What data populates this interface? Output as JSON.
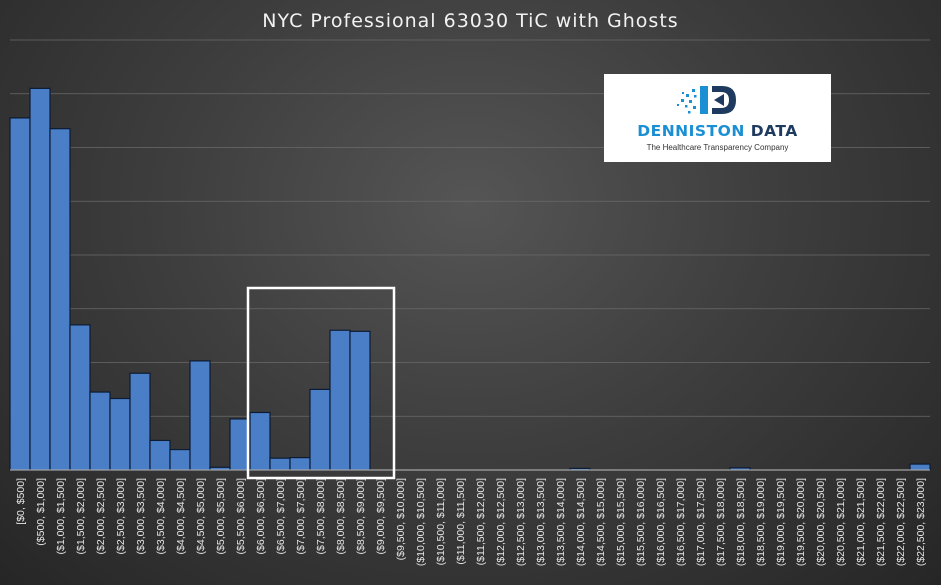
{
  "chart_data": {
    "type": "bar",
    "title": "NYC Professional 63030 TiC with Ghosts",
    "xlabel": "",
    "ylabel": "",
    "categories": [
      "[$0, $500]",
      "($500, $1,000]",
      "($1,000, $1,500]",
      "($1,500, $2,000]",
      "($2,000, $2,500]",
      "($2,500, $3,000]",
      "($3,000, $3,500]",
      "($3,500, $4,000]",
      "($4,000, $4,500]",
      "($4,500, $5,000]",
      "($5,000, $5,500]",
      "($5,500, $6,000]",
      "($6,000, $6,500]",
      "($6,500, $7,000]",
      "($7,000, $7,500]",
      "($7,500, $8,000]",
      "($8,000, $8,500]",
      "($8,500, $9,000]",
      "($9,000, $9,500]",
      "($9,500, $10,000]",
      "($10,000, $10,500]",
      "($10,500, $11,000]",
      "($11,000, $11,500]",
      "($11,500, $12,000]",
      "($12,000, $12,500]",
      "($12,500, $13,000]",
      "($13,000, $13,500]",
      "($13,500, $14,000]",
      "($14,000, $14,500]",
      "($14,500, $15,000]",
      "($15,000, $15,500]",
      "($15,500, $16,000]",
      "($16,000, $16,500]",
      "($16,500, $17,000]",
      "($17,000, $17,500]",
      "($17,500, $18,000]",
      "($18,000, $18,500]",
      "($18,500, $19,000]",
      "($19,000, $19,500]",
      "($19,500, $20,000]",
      "($20,000, $20,500]",
      "($20,500, $21,000]",
      "($21,000, $21,500]",
      "($21,500, $22,000]",
      "($22,000, $22,500]",
      "($22,500, $23,000]"
    ],
    "values": [
      655,
      710,
      635,
      270,
      145,
      133,
      180,
      55,
      38,
      203,
      5,
      95,
      107,
      22,
      23,
      150,
      260,
      258,
      0,
      0,
      0,
      0,
      0,
      0,
      0,
      0,
      0,
      0,
      3,
      0,
      0,
      0,
      0,
      0,
      0,
      0,
      4,
      0,
      0,
      0,
      0,
      0,
      0,
      0,
      0,
      11
    ],
    "ylim": [
      0,
      800
    ],
    "gridlines": true,
    "legend": "none",
    "bar_color": "#4a7fc8",
    "bar_edge_color": "#0d1b33",
    "highlight_box": {
      "from_category": 12,
      "to_category": 18,
      "color": "#ffffff"
    }
  },
  "logo": {
    "name_part1": "DENNISTON",
    "name_part2": "DATA",
    "tagline": "The Healthcare Transparency Company"
  }
}
